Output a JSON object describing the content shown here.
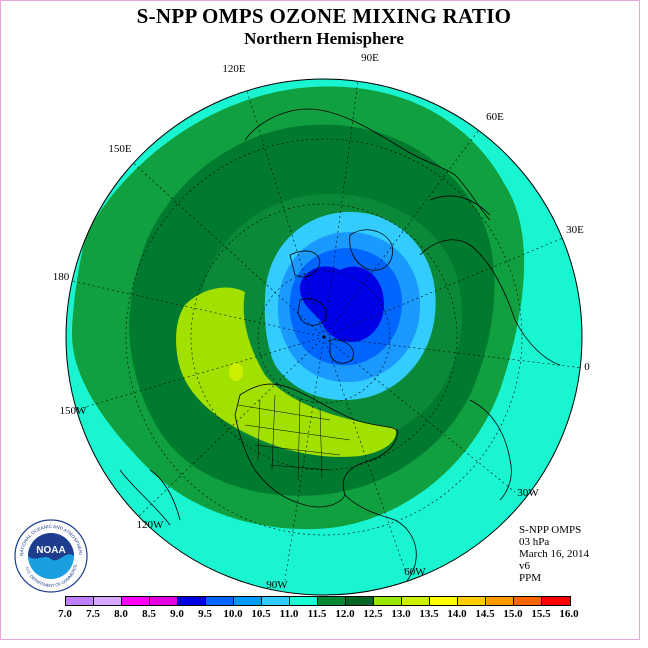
{
  "header": {
    "title": "S-NPP OMPS OZONE MIXING RATIO",
    "subtitle": "Northern Hemisphere"
  },
  "map": {
    "projection": "north-polar-stereographic",
    "parameter": "ozone mixing ratio",
    "longitude_labels": [
      "90E",
      "60E",
      "30E",
      "0",
      "30W",
      "60W",
      "90W",
      "120W",
      "150W",
      "180",
      "150E",
      "120E"
    ],
    "features": [
      "coastlines",
      "us-state-borders",
      "latitude-circles",
      "meridians"
    ],
    "regions": [
      {
        "name": "polar low",
        "color": "#0000dd",
        "range": "8.5-9.0"
      },
      {
        "name": "mid-latitude ring",
        "color": "#009933",
        "range": "11.0-11.5"
      },
      {
        "name": "north-america high",
        "color": "#a6e600",
        "range": "12.0-13.0"
      }
    ]
  },
  "info": {
    "lines": [
      "S-NPP OMPS",
      "03 hPa",
      "March 16, 2014",
      "v6",
      "PPM"
    ]
  },
  "logo": {
    "text": "NOAA",
    "ring_text": "NATIONAL OCEANIC AND ATMOSPHERIC ADMINISTRATION",
    "bottom_text": "U.S. DEPARTMENT OF COMMERCE"
  },
  "colorbar": {
    "labels": [
      "7.0",
      "7.5",
      "8.0",
      "8.5",
      "9.0",
      "9.5",
      "10.0",
      "10.5",
      "11.0",
      "11.5",
      "12.0",
      "12.5",
      "13.0",
      "13.5",
      "14.0",
      "14.5",
      "15.0",
      "15.5",
      "16.0"
    ],
    "colors": [
      "#bf80ff",
      "#d9a6ff",
      "#ff00ff",
      "#e000e0",
      "#0000e6",
      "#0066ff",
      "#0099ff",
      "#33ccff",
      "#1affd5",
      "#008833",
      "#006622",
      "#99e600",
      "#ccf000",
      "#ffff00",
      "#ffcc00",
      "#ff9900",
      "#ff6600",
      "#ff0000",
      "#994d33"
    ]
  }
}
